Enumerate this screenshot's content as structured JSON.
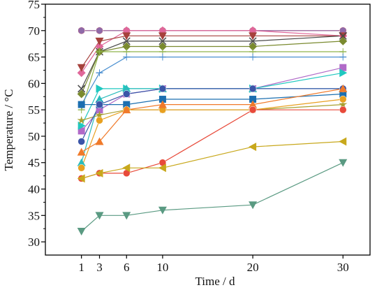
{
  "chart_data": {
    "type": "line",
    "title": "",
    "xlabel": "Time / d",
    "ylabel": "Temperature / °C",
    "xlim": [
      -3,
      33
    ],
    "ylim": [
      27.5,
      75
    ],
    "xticks": [
      1,
      3,
      6,
      10,
      20,
      30
    ],
    "yticks": [
      30,
      35,
      40,
      45,
      50,
      55,
      60,
      65,
      70,
      75
    ],
    "grid": false,
    "legend": "none",
    "series": [
      {
        "color": "#d24a56",
        "marker": "circle",
        "x": [
          1,
          3,
          6,
          10,
          20,
          30
        ],
        "y": [
          70,
          70,
          70,
          70,
          70,
          70
        ]
      },
      {
        "color": "#8f6aa8",
        "marker": "hexagon",
        "x": [
          1,
          3,
          6,
          10,
          20,
          30
        ],
        "y": [
          70,
          70,
          70,
          70,
          70,
          70
        ]
      },
      {
        "color": "#e0679a",
        "marker": "diamond",
        "x": [
          1,
          3,
          6,
          10,
          20,
          30
        ],
        "y": [
          62,
          67,
          70,
          70,
          70,
          69
        ]
      },
      {
        "color": "#a6413c",
        "marker": "tri-down",
        "x": [
          1,
          3,
          6,
          10,
          20,
          30
        ],
        "y": [
          63,
          68,
          69,
          69,
          69,
          69
        ]
      },
      {
        "color": "#4a4a4a",
        "marker": "x",
        "x": [
          1,
          3,
          6,
          10,
          20,
          30
        ],
        "y": [
          59,
          66,
          68,
          68,
          68,
          69
        ]
      },
      {
        "color": "#7a8a2f",
        "marker": "diamond",
        "x": [
          1,
          3,
          6,
          10,
          20,
          30
        ],
        "y": [
          58,
          66,
          67,
          67,
          67,
          68
        ]
      },
      {
        "color": "#8fb34a",
        "marker": "hline",
        "x": [
          1,
          3,
          6,
          10,
          20,
          30
        ],
        "y": [
          55,
          66,
          66,
          66,
          66,
          66
        ]
      },
      {
        "color": "#4a8fd0",
        "marker": "hline",
        "x": [
          1,
          3,
          6,
          10,
          20,
          30
        ],
        "y": [
          56,
          62,
          65,
          65,
          65,
          65
        ]
      },
      {
        "color": "#b06ac8",
        "marker": "square",
        "x": [
          1,
          3,
          6,
          10,
          20,
          30
        ],
        "y": [
          51,
          55,
          58,
          59,
          59,
          63
        ]
      },
      {
        "color": "#20c8c0",
        "marker": "tri-right",
        "x": [
          1,
          3,
          6,
          10,
          20,
          30
        ],
        "y": [
          52,
          59,
          59,
          59,
          59,
          62
        ]
      },
      {
        "color": "#2bbcbc",
        "marker": "tri-up",
        "x": [
          1,
          3,
          6,
          10,
          20,
          30
        ],
        "y": [
          45,
          57,
          59,
          59,
          59,
          59
        ]
      },
      {
        "color": "#1c6fb0",
        "marker": "square",
        "x": [
          1,
          3,
          6,
          10,
          20,
          30
        ],
        "y": [
          56,
          56,
          56,
          57,
          57,
          58
        ]
      },
      {
        "color": "#a8a030",
        "marker": "star",
        "x": [
          1,
          3,
          6,
          10,
          20,
          30
        ],
        "y": [
          53,
          54,
          55,
          55,
          55,
          56
        ]
      },
      {
        "color": "#3a55a8",
        "marker": "circle",
        "x": [
          1,
          3,
          6,
          10,
          20,
          30
        ],
        "y": [
          49,
          56,
          58,
          59,
          59,
          59
        ]
      },
      {
        "color": "#e8a020",
        "marker": "circle",
        "x": [
          1,
          3,
          6,
          10,
          20,
          30
        ],
        "y": [
          44,
          53,
          55,
          55,
          55,
          57
        ]
      },
      {
        "color": "#f07a2a",
        "marker": "tri-up",
        "x": [
          1,
          3,
          6,
          10,
          20,
          30
        ],
        "y": [
          47,
          49,
          55,
          56,
          56,
          59
        ]
      },
      {
        "color": "#e84a3a",
        "marker": "circle",
        "x": [
          1,
          3,
          6,
          10,
          20,
          30
        ],
        "y": [
          42,
          43,
          43,
          45,
          55,
          55
        ]
      },
      {
        "color": "#c8a81c",
        "marker": "tri-left",
        "x": [
          1,
          3,
          6,
          10,
          20,
          30
        ],
        "y": [
          42,
          43,
          44,
          44,
          48,
          49
        ]
      },
      {
        "color": "#5a9a82",
        "marker": "tri-down",
        "x": [
          1,
          3,
          6,
          10,
          20,
          30
        ],
        "y": [
          32,
          35,
          35,
          36,
          37,
          45
        ]
      }
    ]
  }
}
